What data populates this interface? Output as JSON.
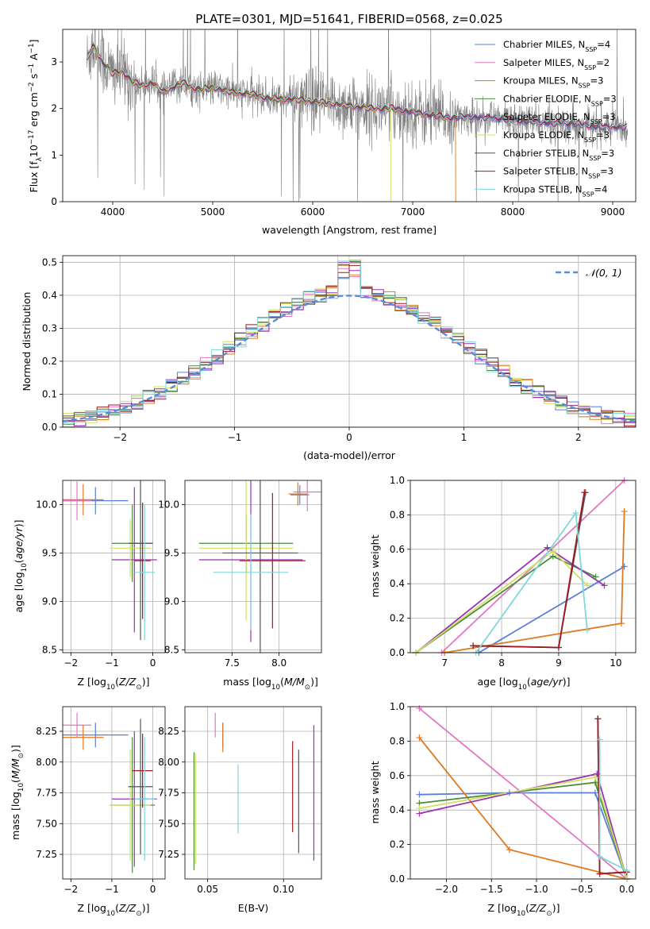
{
  "figure_title": "PLATE=0301, MJD=51641, FIBERID=0568, z=0.025",
  "colors": {
    "Chabrier MILES": "#5b7fd8",
    "Salpeter MILES": "#e377c2",
    "Kroupa MILES": "#e07820",
    "Chabrier ELODIE": "#4a8c3a",
    "Salpeter ELODIE": "#9a32b4",
    "Kroupa ELODIE": "#d0e060",
    "Chabrier STELIB": "#555555",
    "Salpeter STELIB": "#a01820",
    "Kroupa STELIB": "#7dd8dc",
    "data": "#808080",
    "gaussian": "#5b8ad8"
  },
  "chart_data": [
    {
      "type": "line",
      "panel": "spectrum",
      "xlabel": "wavelength [Angstrom, rest frame]",
      "ylabel": "Flux [f_λ10^-17 erg cm^-2 s^-1 A^-1]",
      "xlim": [
        3500,
        9230
      ],
      "ylim": [
        0,
        3.7
      ],
      "xticks": [
        4000,
        5000,
        6000,
        7000,
        8000,
        9000
      ],
      "yticks": [
        0,
        1,
        2,
        3
      ],
      "legend_position": "right",
      "legend": [
        {
          "model": "Chabrier MILES",
          "nssp": "4"
        },
        {
          "model": "Salpeter MILES",
          "nssp": "2"
        },
        {
          "model": "Kroupa MILES",
          "nssp": "3"
        },
        {
          "model": "Chabrier ELODIE",
          "nssp": "3"
        },
        {
          "model": "Salpeter ELODIE",
          "nssp": "3"
        },
        {
          "model": "Kroupa ELODIE",
          "nssp": "3"
        },
        {
          "model": "Chabrier STELIB",
          "nssp": "3"
        },
        {
          "model": "Salpeter STELIB",
          "nssp": "3"
        },
        {
          "model": "Kroupa STELIB",
          "nssp": "4"
        }
      ],
      "model_continuum": {
        "x": [
          3740,
          3800,
          3900,
          4000,
          4100,
          4200,
          4300,
          4400,
          4500,
          4600,
          4700,
          4800,
          4900,
          5000,
          5200,
          5400,
          5600,
          5800,
          6000,
          6200,
          6400,
          6600,
          6800,
          7000,
          7200,
          7400,
          7600,
          7800,
          8000,
          8200,
          8400,
          8600,
          8800,
          9000,
          9100
        ],
        "y": [
          3.0,
          3.35,
          3.0,
          2.75,
          2.8,
          2.55,
          2.5,
          2.55,
          2.35,
          2.45,
          2.55,
          2.45,
          2.4,
          2.45,
          2.35,
          2.3,
          2.2,
          2.2,
          2.15,
          2.1,
          2.05,
          2.0,
          2.0,
          1.92,
          1.85,
          1.8,
          1.82,
          1.8,
          1.75,
          1.72,
          1.68,
          1.68,
          1.62,
          1.6,
          1.6
        ]
      },
      "model_dropouts": [
        {
          "model": "Kroupa ELODIE",
          "x": 6780
        },
        {
          "model": "Kroupa MILES",
          "x": 7430
        }
      ]
    },
    {
      "type": "histogram",
      "panel": "residuals",
      "xlabel": "(data-model)/error",
      "ylabel": "Normed distribution",
      "xlim": [
        -2.5,
        2.5
      ],
      "ylim": [
        0,
        0.52
      ],
      "xticks": [
        -2,
        -1,
        0,
        1,
        2
      ],
      "yticks": [
        0.0,
        0.1,
        0.2,
        0.3,
        0.4,
        0.5
      ],
      "legend_label": "N(0,1)",
      "bin_width": 0.1
    },
    {
      "type": "errorbar",
      "panel": "age_vs_Z",
      "xlabel": "Z [log10(Z/Z⊙)]",
      "ylabel": "age [log10(age/yr)]",
      "xlim": [
        -2.2,
        0.3
      ],
      "ylim": [
        8.47,
        10.25
      ],
      "xticks": [
        -2,
        -1,
        0
      ],
      "yticks": [
        8.5,
        9.0,
        9.5,
        10.0
      ],
      "points": [
        {
          "model": "Chabrier MILES",
          "x": -1.4,
          "xerr": 0.8,
          "y": 10.04,
          "yerr": 0.14
        },
        {
          "model": "Salpeter MILES",
          "x": -1.85,
          "xerr": 0.35,
          "y": 10.04,
          "yerr": 0.2
        },
        {
          "model": "Kroupa MILES",
          "x": -1.7,
          "xerr": 0.5,
          "y": 10.05,
          "yerr": 0.16
        },
        {
          "model": "Chabrier ELODIE",
          "x": -0.5,
          "xerr": 0.5,
          "y": 9.6,
          "yerr": 0.4
        },
        {
          "model": "Salpeter ELODIE",
          "x": -0.45,
          "xerr": 0.55,
          "y": 9.43,
          "yerr": 0.75
        },
        {
          "model": "Kroupa ELODIE",
          "x": -0.55,
          "xerr": 0.5,
          "y": 9.55,
          "yerr": 0.3
        },
        {
          "model": "Chabrier STELIB",
          "x": -0.3,
          "xerr": 0.3,
          "y": 9.6,
          "yerr": 1.0
        },
        {
          "model": "Salpeter STELIB",
          "x": -0.25,
          "xerr": 0.2,
          "y": 9.42,
          "yerr": 0.6
        },
        {
          "model": "Kroupa STELIB",
          "x": -0.2,
          "xerr": 0.25,
          "y": 9.3,
          "yerr": 0.7
        }
      ]
    },
    {
      "type": "errorbar",
      "panel": "age_vs_mass",
      "xlabel": "mass [log10(M/M⊙)]",
      "ylabel": "",
      "xlim": [
        7.0,
        8.45
      ],
      "ylim": [
        8.47,
        10.25
      ],
      "xticks": [
        7.5,
        8.0
      ],
      "yticks": [
        8.5,
        9.0,
        9.5,
        10.0
      ],
      "points": [
        {
          "model": "Chabrier MILES",
          "x": 8.22,
          "xerr": 0.1,
          "y": 10.1,
          "yerr": 0.1
        },
        {
          "model": "Salpeter MILES",
          "x": 8.3,
          "xerr": 0.15,
          "y": 10.13,
          "yerr": 0.2
        },
        {
          "model": "Kroupa MILES",
          "x": 8.2,
          "xerr": 0.1,
          "y": 10.11,
          "yerr": 0.12
        },
        {
          "model": "Chabrier ELODIE",
          "x": 7.65,
          "xerr": 0.5,
          "y": 9.6,
          "yerr": 0.3
        },
        {
          "model": "Salpeter ELODIE",
          "x": 7.7,
          "xerr": 0.55,
          "y": 9.43,
          "yerr": 0.85
        },
        {
          "model": "Kroupa ELODIE",
          "x": 7.65,
          "xerr": 0.5,
          "y": 9.55,
          "yerr": 0.75
        },
        {
          "model": "Chabrier STELIB",
          "x": 7.8,
          "xerr": 0.4,
          "y": 9.5,
          "yerr": 1.05
        },
        {
          "model": "Salpeter STELIB",
          "x": 7.93,
          "xerr": 0.35,
          "y": 9.42,
          "yerr": 0.7
        },
        {
          "model": "Kroupa STELIB",
          "x": 7.7,
          "xerr": 0.4,
          "y": 9.3,
          "yerr": 0.6
        }
      ]
    },
    {
      "type": "line",
      "panel": "mass_weight_vs_age",
      "xlabel": "age [log10(age/yr)]",
      "ylabel": "mass weight",
      "xlim": [
        6.4,
        10.35
      ],
      "ylim": [
        0,
        1.0
      ],
      "xticks": [
        7,
        8,
        9,
        10
      ],
      "yticks": [
        0.0,
        0.2,
        0.4,
        0.6,
        0.8,
        1.0
      ],
      "series": [
        {
          "model": "Chabrier MILES",
          "x": [
            7.6,
            10.15
          ],
          "y": [
            0.0,
            0.5
          ]
        },
        {
          "model": "Salpeter MILES",
          "x": [
            6.95,
            10.15
          ],
          "y": [
            0.0,
            1.0
          ]
        },
        {
          "model": "Kroupa MILES",
          "x": [
            7.0,
            10.1,
            10.15
          ],
          "y": [
            0.0,
            0.17,
            0.82
          ]
        },
        {
          "model": "Chabrier ELODIE",
          "x": [
            6.5,
            8.9,
            9.65
          ],
          "y": [
            0.0,
            0.56,
            0.44
          ]
        },
        {
          "model": "Salpeter ELODIE",
          "x": [
            6.5,
            8.8,
            9.8
          ],
          "y": [
            0.0,
            0.61,
            0.39
          ]
        },
        {
          "model": "Kroupa ELODIE",
          "x": [
            6.5,
            8.9,
            9.5
          ],
          "y": [
            0.0,
            0.59,
            0.39
          ]
        },
        {
          "model": "Chabrier STELIB",
          "x": [
            7.5,
            9.0,
            9.47
          ],
          "y": [
            0.04,
            0.03,
            0.93
          ]
        },
        {
          "model": "Salpeter STELIB",
          "x": [
            7.5,
            9.0,
            9.45
          ],
          "y": [
            0.04,
            0.03,
            0.93
          ]
        },
        {
          "model": "Kroupa STELIB",
          "x": [
            7.55,
            9.3,
            9.5
          ],
          "y": [
            0.0,
            0.81,
            0.13
          ]
        }
      ]
    },
    {
      "type": "errorbar",
      "panel": "mass_vs_Z",
      "xlabel": "Z [log10(Z/Z⊙)]",
      "ylabel": "mass [log10(M/M⊙)]",
      "xlim": [
        -2.2,
        0.3
      ],
      "ylim": [
        7.05,
        8.45
      ],
      "xticks": [
        -2,
        -1,
        0
      ],
      "yticks": [
        7.25,
        7.5,
        7.75,
        8.0,
        8.25
      ],
      "points": [
        {
          "model": "Chabrier MILES",
          "x": -1.4,
          "xerr": 0.8,
          "y": 8.22,
          "yerr": 0.1
        },
        {
          "model": "Salpeter MILES",
          "x": -1.85,
          "xerr": 0.35,
          "y": 8.3,
          "yerr": 0.1
        },
        {
          "model": "Kroupa MILES",
          "x": -1.7,
          "xerr": 0.5,
          "y": 8.2,
          "yerr": 0.1
        },
        {
          "model": "Chabrier ELODIE",
          "x": -0.5,
          "xerr": 0.55,
          "y": 7.65,
          "yerr": 0.55
        },
        {
          "model": "Salpeter ELODIE",
          "x": -0.45,
          "xerr": 0.55,
          "y": 7.7,
          "yerr": 0.55
        },
        {
          "model": "Kroupa ELODIE",
          "x": -0.55,
          "xerr": 0.5,
          "y": 7.65,
          "yerr": 0.45
        },
        {
          "model": "Chabrier STELIB",
          "x": -0.3,
          "xerr": 0.3,
          "y": 7.8,
          "yerr": 0.55
        },
        {
          "model": "Salpeter STELIB",
          "x": -0.25,
          "xerr": 0.25,
          "y": 7.93,
          "yerr": 0.3
        },
        {
          "model": "Kroupa STELIB",
          "x": -0.2,
          "xerr": 0.25,
          "y": 7.7,
          "yerr": 0.5
        }
      ]
    },
    {
      "type": "errorbar",
      "panel": "mass_vs_ebv",
      "xlabel": "E(B-V)",
      "ylabel": "",
      "xlim": [
        0.035,
        0.125
      ],
      "ylim": [
        7.05,
        8.45
      ],
      "xticks": [
        0.05,
        0.1
      ],
      "yticks": [
        7.25,
        7.5,
        7.75,
        8.0,
        8.25
      ],
      "points": [
        {
          "model": "Chabrier MILES",
          "x": 0.06,
          "y": 8.22,
          "yerr": 0.1
        },
        {
          "model": "Salpeter MILES",
          "x": 0.055,
          "y": 8.3,
          "yerr": 0.1
        },
        {
          "model": "Kroupa MILES",
          "x": 0.06,
          "y": 8.2,
          "yerr": 0.12
        },
        {
          "model": "Chabrier ELODIE",
          "x": 0.041,
          "y": 7.6,
          "yerr": 0.48
        },
        {
          "model": "Salpeter ELODIE",
          "x": 0.12,
          "y": 7.75,
          "yerr": 0.55
        },
        {
          "model": "Kroupa ELODIE",
          "x": 0.042,
          "y": 7.62,
          "yerr": 0.45
        },
        {
          "model": "Chabrier STELIB",
          "x": 0.11,
          "y": 7.68,
          "yerr": 0.42
        },
        {
          "model": "Salpeter STELIB",
          "x": 0.106,
          "y": 7.8,
          "yerr": 0.37
        },
        {
          "model": "Kroupa STELIB",
          "x": 0.07,
          "y": 7.7,
          "yerr": 0.28
        }
      ]
    },
    {
      "type": "line",
      "panel": "mass_weight_vs_Z",
      "xlabel": "Z [log10(Z/Z⊙)]",
      "ylabel": "mass weight",
      "xlim": [
        -2.4,
        0.1
      ],
      "ylim": [
        0,
        1.0
      ],
      "xticks": [
        -2.0,
        -1.5,
        -1.0,
        -0.5,
        0.0
      ],
      "yticks": [
        0.0,
        0.2,
        0.4,
        0.6,
        0.8,
        1.0
      ],
      "series": [
        {
          "model": "Chabrier MILES",
          "x": [
            -2.3,
            -1.3,
            -0.35,
            0.0
          ],
          "y": [
            0.49,
            0.5,
            0.5,
            0.0
          ]
        },
        {
          "model": "Salpeter MILES",
          "x": [
            -2.3,
            0.0
          ],
          "y": [
            0.99,
            0.0
          ]
        },
        {
          "model": "Kroupa MILES",
          "x": [
            -2.3,
            -1.3,
            0.0
          ],
          "y": [
            0.82,
            0.17,
            0.0
          ]
        },
        {
          "model": "Chabrier ELODIE",
          "x": [
            -2.3,
            -0.35,
            0.0
          ],
          "y": [
            0.44,
            0.56,
            0.0
          ]
        },
        {
          "model": "Salpeter ELODIE",
          "x": [
            -2.3,
            -0.33,
            0.0
          ],
          "y": [
            0.38,
            0.61,
            0.0
          ]
        },
        {
          "model": "Kroupa ELODIE",
          "x": [
            -2.3,
            -0.35,
            0.0
          ],
          "y": [
            0.41,
            0.59,
            0.0
          ]
        },
        {
          "model": "Chabrier STELIB",
          "x": [
            -0.32,
            -0.3,
            0.0
          ],
          "y": [
            0.93,
            0.03,
            0.04
          ]
        },
        {
          "model": "Salpeter STELIB",
          "x": [
            -0.32,
            -0.3,
            0.0
          ],
          "y": [
            0.93,
            0.03,
            0.04
          ]
        },
        {
          "model": "Kroupa STELIB",
          "x": [
            -0.3,
            -0.3,
            0.0
          ],
          "y": [
            0.81,
            0.13,
            0.05
          ]
        }
      ]
    }
  ]
}
